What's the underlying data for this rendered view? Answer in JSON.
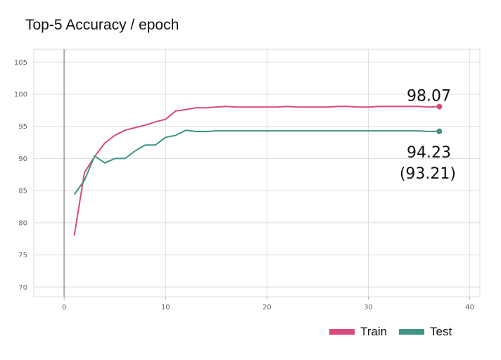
{
  "title": "Top-5 Accuracy / epoch",
  "colors": {
    "train": "#d84a7d",
    "test": "#3f9485",
    "grid": "#dddddd",
    "axis": "#aaaaaa"
  },
  "chart_data": {
    "type": "line",
    "title": "Top-5 Accuracy / epoch",
    "xlabel": "",
    "ylabel": "",
    "xlim": [
      -3,
      41
    ],
    "ylim": [
      68.5,
      107
    ],
    "xticks": [
      0,
      10,
      20,
      30,
      40
    ],
    "yticks": [
      70,
      75,
      80,
      85,
      90,
      95,
      100,
      105
    ],
    "grid": true,
    "legend": "bottom-right",
    "series": [
      {
        "name": "Train",
        "color_key": "train",
        "x": [
          1,
          2,
          3,
          4,
          5,
          6,
          7,
          8,
          9,
          10,
          11,
          12,
          13,
          14,
          15,
          16,
          17,
          18,
          19,
          20,
          21,
          22,
          23,
          24,
          25,
          26,
          27,
          28,
          29,
          30,
          31,
          32,
          33,
          34,
          35,
          36,
          37
        ],
        "values": [
          78.0,
          87.8,
          90.3,
          92.4,
          93.6,
          94.4,
          94.8,
          95.2,
          95.7,
          96.1,
          97.4,
          97.6,
          97.9,
          97.9,
          98.0,
          98.1,
          98.0,
          98.0,
          98.0,
          98.0,
          98.0,
          98.1,
          98.0,
          98.0,
          98.0,
          98.0,
          98.1,
          98.1,
          98.0,
          98.0,
          98.1,
          98.1,
          98.1,
          98.1,
          98.1,
          98.0,
          98.07
        ],
        "end_label": "98.07"
      },
      {
        "name": "Test",
        "color_key": "test",
        "x": [
          1,
          2,
          3,
          4,
          5,
          6,
          7,
          8,
          9,
          10,
          11,
          12,
          13,
          14,
          15,
          16,
          17,
          18,
          19,
          20,
          21,
          22,
          23,
          24,
          25,
          26,
          27,
          28,
          29,
          30,
          31,
          32,
          33,
          34,
          35,
          36,
          37
        ],
        "values": [
          84.4,
          86.6,
          90.4,
          89.3,
          90.0,
          90.0,
          91.2,
          92.1,
          92.1,
          93.3,
          93.6,
          94.4,
          94.2,
          94.2,
          94.3,
          94.3,
          94.3,
          94.3,
          94.3,
          94.3,
          94.3,
          94.3,
          94.3,
          94.3,
          94.3,
          94.3,
          94.3,
          94.3,
          94.3,
          94.3,
          94.3,
          94.3,
          94.3,
          94.3,
          94.3,
          94.2,
          94.23
        ],
        "end_label": "94.23",
        "end_label_sub": "(93.21)"
      }
    ]
  }
}
